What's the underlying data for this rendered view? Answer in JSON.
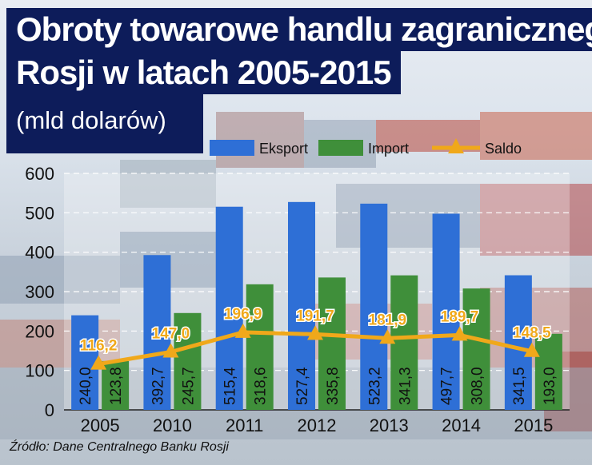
{
  "title": {
    "line1": "Obroty towarowe handlu zagranicznego",
    "line2": "Rosji w latach 2005-2015",
    "unit": "(mld dolarów)"
  },
  "source": "Źródło: Dane Centralnego Banku Rosji",
  "legend": [
    "Eksport",
    "Import",
    "Saldo"
  ],
  "colors": {
    "export": "#2e6fd6",
    "import": "#3f8f3a",
    "saldo": "#f0a81a",
    "title_bg": "#0d1c5a"
  },
  "chart_data": {
    "type": "bar",
    "categories": [
      "2005",
      "2010",
      "2011",
      "2012",
      "2013",
      "2014",
      "2015"
    ],
    "series": [
      {
        "name": "Eksport",
        "type": "bar",
        "values": [
          240.0,
          392.7,
          515.4,
          527.4,
          523.2,
          497.7,
          341.5
        ],
        "labels": [
          "240,0",
          "392,7",
          "515,4",
          "527,4",
          "523,2",
          "497,7",
          "341,5"
        ]
      },
      {
        "name": "Import",
        "type": "bar",
        "values": [
          123.8,
          245.7,
          318.6,
          335.8,
          341.3,
          308.0,
          193.0
        ],
        "labels": [
          "123,8",
          "245,7",
          "318,6",
          "335,8",
          "341,3",
          "308,0",
          "193,0"
        ]
      },
      {
        "name": "Saldo",
        "type": "line",
        "values": [
          116.2,
          147.0,
          196.9,
          191.7,
          181.9,
          189.7,
          148.5
        ],
        "labels": [
          "116,2",
          "147,0",
          "196,9",
          "191,7",
          "181,9",
          "189,7",
          "148,5"
        ]
      }
    ],
    "yticks": [
      "0",
      "100",
      "200",
      "300",
      "400",
      "500",
      "600"
    ],
    "ylim": [
      0,
      600
    ],
    "grid": true,
    "legend_position": "top"
  }
}
